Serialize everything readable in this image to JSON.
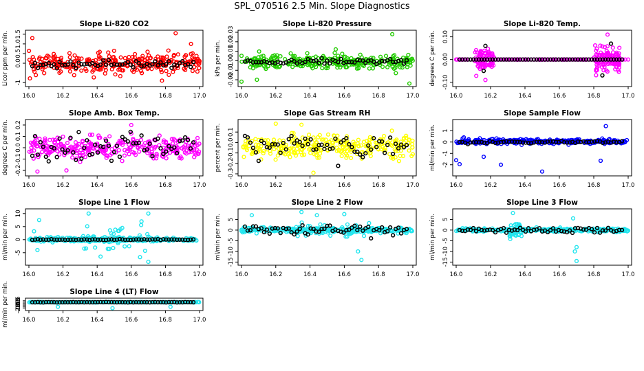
{
  "title": "SPL_070516  2.5 Min. Slope Diagnostics",
  "colors": {
    "black": "#000000",
    "red": "#ff0000",
    "green": "#22cc00",
    "magenta": "#ff00ff",
    "yellow": "#ffff00",
    "blue": "#0000ff",
    "cyan": "#22e5ee"
  },
  "chart_data": [
    {
      "type": "scatter",
      "title": "Slope Li-820 CO2",
      "ylabel": "Licor ppm per min.",
      "xlim": [
        16.0,
        17.0
      ],
      "ylim": [
        -1.1,
        1.6
      ],
      "xticks": [
        "16.0",
        "16.2",
        "16.4",
        "16.6",
        "16.8",
        "17.0"
      ],
      "yticks": [
        -1,
        0,
        0.5,
        1,
        1.5
      ],
      "ytick_labels": [
        "-1",
        "0.0",
        "0.5",
        "1.0",
        "1.5"
      ],
      "color": "red",
      "bg": {
        "n": 300,
        "center": 0.0,
        "spread": 0.45,
        "seed": 11,
        "outliers": [
          [
            16.02,
            1.3
          ],
          [
            16.86,
            1.55
          ],
          [
            16.82,
            -0.6
          ],
          [
            16.95,
            1.0
          ],
          [
            16.78,
            -0.9
          ]
        ]
      },
      "fg": {
        "n": 60,
        "center": -0.05,
        "spread": 0.08,
        "seed": 12
      }
    },
    {
      "type": "scatter",
      "title": "Slope Li-820 Pressure",
      "ylabel": "kPa per min.",
      "xlim": [
        16.0,
        17.0
      ],
      "ylim": [
        -0.025,
        0.03
      ],
      "xticks": [
        "16.0",
        "16.2",
        "16.4",
        "16.6",
        "16.8",
        "17.0"
      ],
      "yticks": [
        -0.02,
        -0.01,
        0,
        0.01,
        0.02,
        0.03
      ],
      "ytick_labels": [
        "-0.02",
        "-0.01",
        "0.00",
        "0.01",
        "0.02",
        "0.03"
      ],
      "color": "green",
      "bg": {
        "n": 300,
        "center": -0.001,
        "spread": 0.006,
        "seed": 21,
        "outliers": [
          [
            16.0,
            -0.022
          ],
          [
            16.88,
            0.028
          ],
          [
            16.98,
            -0.024
          ],
          [
            16.09,
            -0.02
          ],
          [
            16.55,
            0.012
          ]
        ]
      },
      "fg": {
        "n": 60,
        "center": -0.001,
        "spread": 0.0012,
        "seed": 22
      }
    },
    {
      "type": "scatter",
      "title": "Slope Li-820 Temp.",
      "ylabel": "degrees C per min.",
      "xlim": [
        16.0,
        17.0
      ],
      "ylim": [
        -0.11,
        0.12
      ],
      "xticks": [
        "16.0",
        "16.2",
        "16.4",
        "16.6",
        "16.8",
        "17.0"
      ],
      "yticks": [
        -0.1,
        0,
        0.1
      ],
      "ytick_labels": [
        "-0.10",
        "0.00",
        "0.10"
      ],
      "color": "magenta",
      "bg": {
        "n": 80,
        "center": 0.0,
        "spread": 0.0,
        "seed": 31,
        "clusters": [
          [
            16.11,
            16.22,
            0.04,
            90
          ],
          [
            16.8,
            16.95,
            0.045,
            120
          ]
        ],
        "outliers": [
          [
            16.88,
            0.11
          ],
          [
            16.17,
            -0.09
          ]
        ]
      },
      "fg": {
        "n": 60,
        "center": 0.0,
        "spread": 0.0,
        "seed": 32,
        "outliers": [
          [
            16.17,
            0.06
          ],
          [
            16.85,
            -0.07
          ],
          [
            16.9,
            0.07
          ],
          [
            16.16,
            -0.05
          ]
        ]
      }
    },
    {
      "type": "scatter",
      "title": "Slope Amb. Box Temp.",
      "ylabel": "degrees C per min.",
      "xlim": [
        16.0,
        17.0
      ],
      "ylim": [
        -0.23,
        0.23
      ],
      "xticks": [
        "16.0",
        "16.2",
        "16.4",
        "16.6",
        "16.8",
        "17.0"
      ],
      "yticks": [
        -0.2,
        -0.1,
        0,
        0.1,
        0.2
      ],
      "ytick_labels": [
        "-0.2",
        "-0.1",
        "0.0",
        "0.1",
        "0.2"
      ],
      "color": "magenta",
      "bg": {
        "n": 300,
        "center": 0.0,
        "spread": 0.08,
        "seed": 41,
        "outliers": [
          [
            16.05,
            -0.21
          ],
          [
            16.6,
            0.2
          ],
          [
            16.22,
            -0.2
          ]
        ]
      },
      "fg": {
        "n": 60,
        "center": 0.0,
        "spread": 0.07,
        "seed": 42
      }
    },
    {
      "type": "scatter",
      "title": "Slope Gas Stream RH",
      "ylabel": "percent per min.",
      "xlim": [
        16.0,
        17.0
      ],
      "ylim": [
        -0.3,
        0.2
      ],
      "xticks": [
        "16.0",
        "16.2",
        "16.4",
        "16.6",
        "16.8",
        "17.0"
      ],
      "yticks": [
        -0.3,
        -0.2,
        -0.1,
        0,
        0.1
      ],
      "ytick_labels": [
        "-0.3",
        "-0.2",
        "-0.1",
        "0.0",
        "0.1"
      ],
      "color": "yellow",
      "bg": {
        "n": 300,
        "center": -0.04,
        "spread": 0.09,
        "seed": 51,
        "outliers": [
          [
            16.42,
            -0.29
          ],
          [
            16.2,
            0.18
          ],
          [
            16.35,
            0.17
          ]
        ]
      },
      "fg": {
        "n": 60,
        "center": -0.04,
        "spread": 0.06,
        "seed": 52
      }
    },
    {
      "type": "scatter",
      "title": "Slope Sample Flow",
      "ylabel": "ml/min per min.",
      "xlim": [
        16.0,
        17.0
      ],
      "ylim": [
        -2.8,
        1.8
      ],
      "xticks": [
        "16.0",
        "16.2",
        "16.4",
        "16.6",
        "16.8",
        "17.0"
      ],
      "yticks": [
        -2,
        -1,
        0,
        1
      ],
      "ytick_labels": [
        "-2",
        "-1",
        "0",
        "1"
      ],
      "color": "blue",
      "bg": {
        "n": 300,
        "center": 0.05,
        "spread": 0.18,
        "seed": 61,
        "outliers": [
          [
            16.0,
            -1.6
          ],
          [
            16.02,
            -1.95
          ],
          [
            16.16,
            -1.3
          ],
          [
            16.26,
            -2.0
          ],
          [
            16.5,
            -2.6
          ],
          [
            16.84,
            -1.65
          ],
          [
            16.87,
            1.4
          ]
        ]
      },
      "fg": {
        "n": 60,
        "center": 0.0,
        "spread": 0.05,
        "seed": 62
      }
    },
    {
      "type": "scatter",
      "title": "Slope Line 1 Flow",
      "ylabel": "ml/min per min.",
      "xlim": [
        16.0,
        17.0
      ],
      "ylim": [
        -9,
        11
      ],
      "xticks": [
        "16.0",
        "16.2",
        "16.4",
        "16.6",
        "16.8",
        "17.0"
      ],
      "yticks": [
        -5,
        0,
        5,
        10
      ],
      "ytick_labels": [
        "-5",
        "0",
        "5",
        "10"
      ],
      "color": "cyan",
      "bg": {
        "n": 300,
        "center": 0.0,
        "spread": 0.7,
        "seed": 71,
        "clusters": [
          [
            16.3,
            16.7,
            4.0,
            40
          ]
        ],
        "outliers": [
          [
            16.06,
            7.5
          ],
          [
            16.05,
            -4.0
          ],
          [
            16.35,
            10.0
          ],
          [
            16.42,
            -6.5
          ],
          [
            16.7,
            -8.5
          ],
          [
            16.66,
            7.0
          ],
          [
            16.7,
            10.0
          ],
          [
            16.03,
            3.2
          ]
        ]
      },
      "fg": {
        "n": 60,
        "center": 0.0,
        "spread": 0.1,
        "seed": 72
      }
    },
    {
      "type": "scatter",
      "title": "Slope Line 2 Flow",
      "ylabel": "ml/min per min.",
      "xlim": [
        16.0,
        17.0
      ],
      "ylim": [
        -15.5,
        9
      ],
      "xticks": [
        "16.0",
        "16.2",
        "16.4",
        "16.6",
        "16.8",
        "17.0"
      ],
      "yticks": [
        -15,
        -10,
        -5,
        0,
        5
      ],
      "ytick_labels": [
        "-15",
        "-10",
        "-5",
        "0",
        "5"
      ],
      "color": "cyan",
      "bg": {
        "n": 300,
        "center": 0.0,
        "spread": 0.9,
        "seed": 81,
        "clusters": [
          [
            16.3,
            16.75,
            3.0,
            50
          ]
        ],
        "outliers": [
          [
            16.06,
            7.0
          ],
          [
            16.35,
            8.5
          ],
          [
            16.68,
            -10.0
          ],
          [
            16.7,
            -14.0
          ],
          [
            16.6,
            7.5
          ],
          [
            16.44,
            7.0
          ]
        ]
      },
      "fg": {
        "n": 60,
        "center": 0.0,
        "spread": 1.3,
        "seed": 82
      }
    },
    {
      "type": "scatter",
      "title": "Slope Line 3 Flow",
      "ylabel": "ml/min per min.",
      "xlim": [
        16.0,
        17.0
      ],
      "ylim": [
        -15.5,
        9
      ],
      "xticks": [
        "16.0",
        "16.2",
        "16.4",
        "16.6",
        "16.8",
        "17.0"
      ],
      "yticks": [
        -15,
        -10,
        -5,
        0,
        5
      ],
      "ytick_labels": [
        "-15",
        "-10",
        "-5",
        "0",
        "5"
      ],
      "color": "cyan",
      "bg": {
        "n": 300,
        "center": 0.0,
        "spread": 0.7,
        "seed": 91,
        "clusters": [
          [
            16.3,
            16.38,
            3.0,
            40
          ]
        ],
        "outliers": [
          [
            16.33,
            8.0
          ],
          [
            16.7,
            -14.5
          ],
          [
            16.69,
            -10.0
          ],
          [
            16.7,
            -8.0
          ],
          [
            16.68,
            5.5
          ]
        ]
      },
      "fg": {
        "n": 60,
        "center": 0.0,
        "spread": 0.6,
        "seed": 92
      }
    },
    {
      "type": "scatter",
      "title": "Slope Line 4 (LT) Flow",
      "ylabel": "ml/min per min.",
      "xlim": [
        16.0,
        17.0
      ],
      "ylim": [
        -2.2,
        0.7
      ],
      "xticks": [
        "16.0",
        "16.2",
        "16.4",
        "16.6",
        "16.8",
        "17.0"
      ],
      "yticks": [
        -2,
        -1.5,
        -1,
        -0.5,
        0,
        0.5
      ],
      "ytick_labels": [
        "-2.0",
        "-1.5",
        "-1.0",
        "-0.5",
        "0.0",
        "0.5"
      ],
      "color": "cyan",
      "bg": {
        "n": 300,
        "center": 0.0,
        "spread": 0.07,
        "seed": 101,
        "outliers": [
          [
            16.17,
            -1.6
          ],
          [
            16.49,
            -2.1
          ],
          [
            16.83,
            -1.6
          ]
        ]
      },
      "fg": {
        "n": 60,
        "center": 0.0,
        "spread": 0.04,
        "seed": 102
      }
    }
  ]
}
